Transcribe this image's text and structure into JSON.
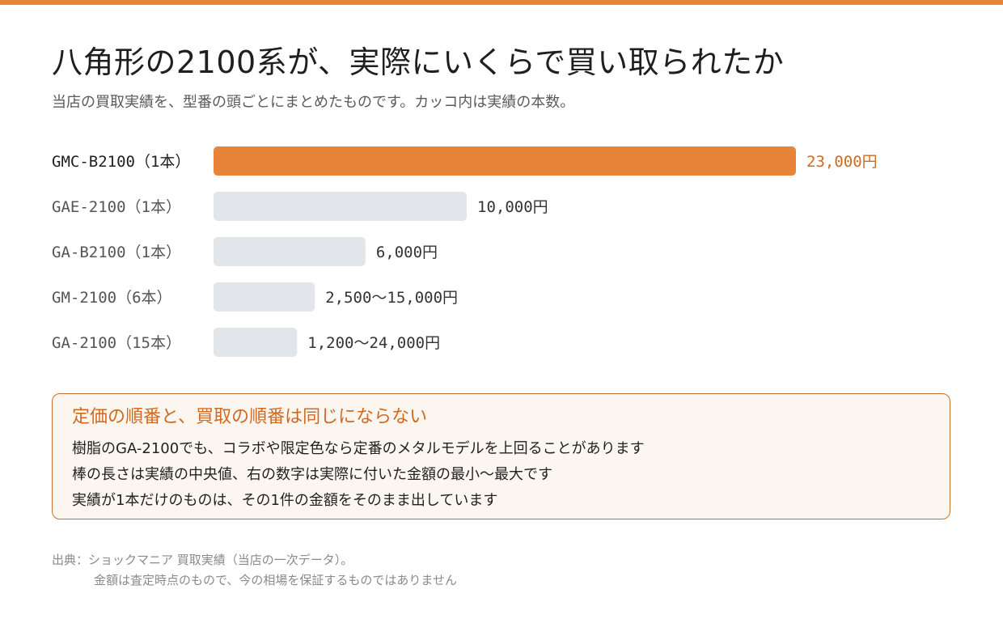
{
  "header": {
    "title": "八角形の2100系が、実際にいくらで買い取られたか",
    "subtitle": "当店の買取実績を、型番の頭ごとにまとめたものです。カッコ内は実績の本数。"
  },
  "colors": {
    "accent": "#e8833a",
    "bar_default": "#e2e5ea",
    "label_highlight": "#1f1f1f",
    "label_default": "#555555",
    "value_highlight": "#d2691e",
    "value_default": "#333333"
  },
  "chart_data": {
    "type": "bar",
    "orientation": "horizontal",
    "unit": "円",
    "xlim": [
      0,
      23000
    ],
    "grid": false,
    "rows": [
      {
        "label": "GMC-B2100（1本）",
        "value": 23000,
        "value_label": "23,000円",
        "highlight": true
      },
      {
        "label": "GAE-2100（1本）",
        "value": 10000,
        "value_label": "10,000円",
        "highlight": false
      },
      {
        "label": "GA-B2100（1本）",
        "value": 6000,
        "value_label": "6,000円",
        "highlight": false
      },
      {
        "label": "GM-2100（6本）",
        "value": 4000,
        "value_label": "2,500〜15,000円",
        "highlight": false
      },
      {
        "label": "GA-2100（15本）",
        "value": 3300,
        "value_label": "1,200〜24,000円",
        "highlight": false
      }
    ]
  },
  "note": {
    "title": "定価の順番と、買取の順番は同じにならない",
    "lines": [
      "樹脂のGA-2100でも、コラボや限定色なら定番のメタルモデルを上回ることがあります",
      "棒の長さは実績の中央値、右の数字は実際に付いた金額の最小〜最大です",
      "実績が1本だけのものは、その1件の金額をそのまま出しています"
    ]
  },
  "source": {
    "line1": "出典：ショックマニア 買取実績（当店の一次データ）。",
    "line2": "金額は査定時点のもので、今の相場を保証するものではありません"
  }
}
